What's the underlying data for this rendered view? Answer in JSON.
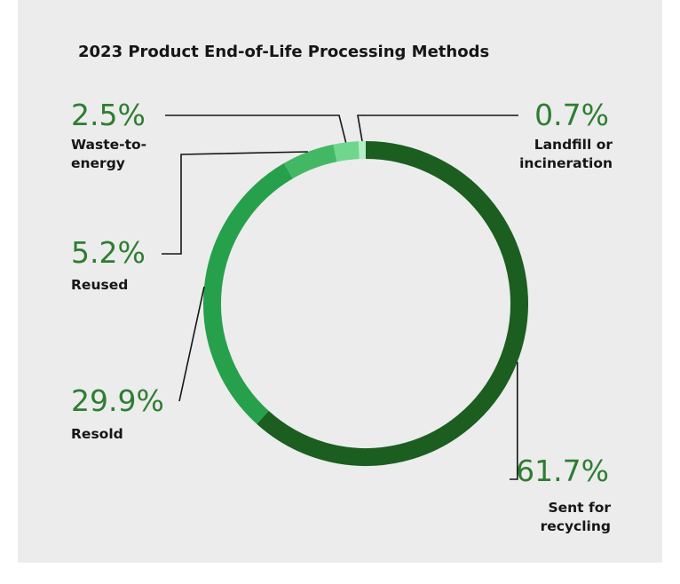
{
  "chart_data": {
    "type": "pie",
    "variant": "donut",
    "title": "2023 Product End-of-Life Processing Methods",
    "segments": [
      {
        "label": "Sent for recycling",
        "lines": [
          "Sent for",
          "recycling"
        ],
        "value": 61.7,
        "display": "61.7%",
        "color": "#1b5e20"
      },
      {
        "label": "Resold",
        "lines": [
          "Resold"
        ],
        "value": 29.9,
        "display": "29.9%",
        "color": "#27a04b"
      },
      {
        "label": "Reused",
        "lines": [
          "Reused"
        ],
        "value": 5.2,
        "display": "5.2%",
        "color": "#43b864"
      },
      {
        "label": "Waste-to-energy",
        "lines": [
          "Waste-to-",
          "energy"
        ],
        "value": 2.5,
        "display": "2.5%",
        "color": "#6fd68e"
      },
      {
        "label": "Landfill or incineration",
        "lines": [
          "Landfill or",
          "incineration"
        ],
        "value": 0.7,
        "display": "0.7%",
        "color": "#b4efc4"
      }
    ],
    "legend": "none",
    "start_angle_deg": 0,
    "direction": "clockwise"
  }
}
